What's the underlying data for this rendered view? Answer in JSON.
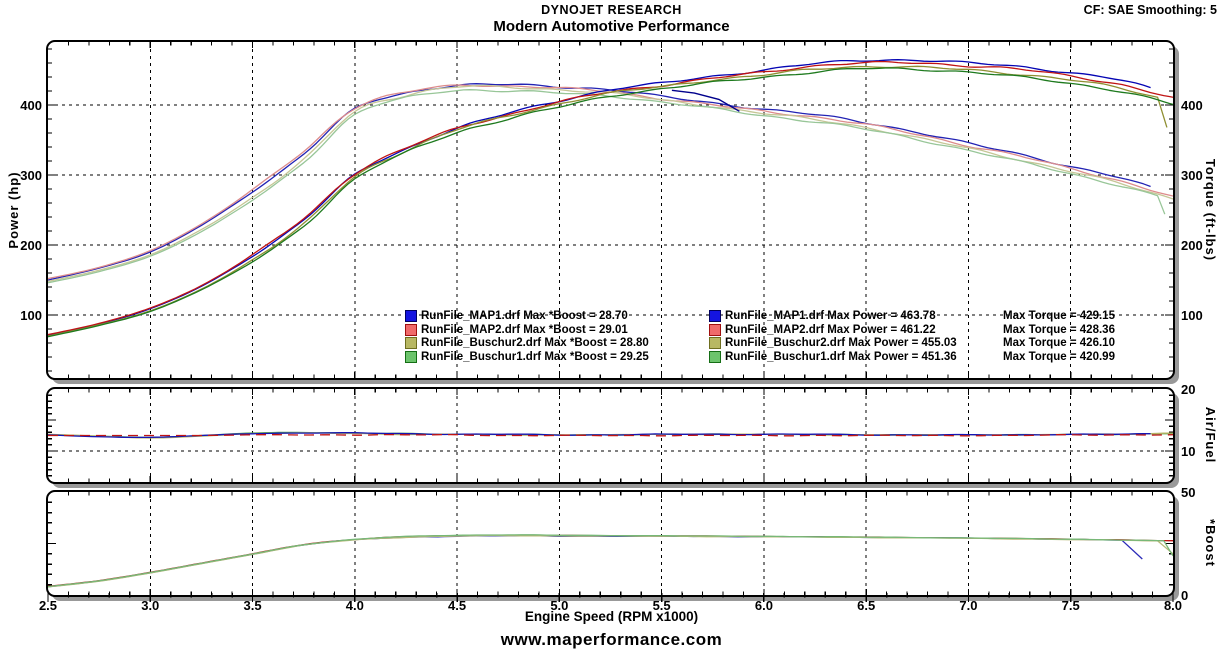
{
  "header": {
    "brand": "DYNOJET RESEARCH",
    "title": "Modern Automotive Performance",
    "correction": "CF: SAE  Smoothing: 5"
  },
  "footer": {
    "website": "www.maperformance.com"
  },
  "axes": {
    "x_label": "Engine Speed (RPM x1000)",
    "x_ticks": [
      "2.5",
      "3.0",
      "3.5",
      "4.0",
      "4.5",
      "5.0",
      "5.5",
      "6.0",
      "6.5",
      "7.0",
      "7.5",
      "8.0"
    ],
    "power_label": "Power (hp)",
    "power_ticks": [
      "100",
      "200",
      "300",
      "400"
    ],
    "torque_label": "Torque (ft-lbs)",
    "torque_ticks": [
      "100",
      "200",
      "300",
      "400"
    ],
    "af_label": "Air/Fuel",
    "af_ticks": [
      "10",
      "20"
    ],
    "boost_label": "*Boost",
    "boost_ticks": [
      "0",
      "50"
    ]
  },
  "runs": [
    {
      "file": "RunFile_MAP1.drf",
      "max_boost": "28.70",
      "max_power": "463.78",
      "max_torque": "429.15",
      "swatch_fill": "#1414e0",
      "swatch_border": "#000060"
    },
    {
      "file": "RunFile_MAP2.drf",
      "max_boost": "29.01",
      "max_power": "461.22",
      "max_torque": "428.36",
      "swatch_fill": "#f06a6a",
      "swatch_border": "#a01010"
    },
    {
      "file": "RunFile_Buschur2.drf",
      "max_boost": "28.80",
      "max_power": "455.03",
      "max_torque": "426.10",
      "swatch_fill": "#b8b863",
      "swatch_border": "#6f6f20"
    },
    {
      "file": "RunFile_Buschur1.drf",
      "max_boost": "29.25",
      "max_power": "451.36",
      "max_torque": "420.99",
      "swatch_fill": "#6cc46c",
      "swatch_border": "#156e15"
    }
  ],
  "legend": {
    "boost_block": [
      "RunFile_MAP1.drf Max *Boost = 28.70",
      "RunFile_MAP2.drf Max *Boost = 29.01",
      "RunFile_Buschur2.drf Max *Boost = 28.80",
      "RunFile_Buschur1.drf Max *Boost = 29.25"
    ],
    "power_block": [
      {
        "power": "RunFile_MAP1.drf Max Power = 463.78",
        "torque": "Max Torque = 429.15"
      },
      {
        "power": "RunFile_MAP2.drf Max Power = 461.22",
        "torque": "Max Torque = 428.36"
      },
      {
        "power": "RunFile_Buschur2.drf Max Power = 455.03",
        "torque": "Max Torque = 426.10"
      },
      {
        "power": "RunFile_Buschur1.drf Max Power = 451.36",
        "torque": "Max Torque = 420.99"
      }
    ]
  },
  "chart_data": [
    {
      "type": "line",
      "title": "Power and Torque vs Engine Speed",
      "xlabel": "Engine Speed (RPM x1000)",
      "x_range": [
        2.5,
        8.0
      ],
      "y_left": {
        "label": "Power (hp)",
        "range": [
          10,
          490
        ],
        "gridlines": [
          100,
          200,
          300,
          400
        ]
      },
      "y_right": {
        "label": "Torque (ft-lbs)",
        "range": [
          10,
          490
        ]
      },
      "x_gridlines": [
        3.0,
        3.5,
        4.0,
        4.5,
        5.0,
        5.5,
        6.0,
        6.5,
        7.0,
        7.5
      ],
      "x": [
        2.5,
        2.75,
        3.0,
        3.25,
        3.5,
        3.75,
        4.0,
        4.25,
        4.5,
        4.75,
        5.0,
        5.25,
        5.5,
        5.75,
        6.0,
        6.25,
        6.5,
        6.75,
        7.0,
        7.25,
        7.5,
        7.75,
        8.0
      ],
      "series": [
        {
          "id": "map1-torque",
          "run": "RunFile_MAP1.drf",
          "metric": "torque",
          "color": "#2323b4",
          "end_rpm": 7.9,
          "values": [
            150,
            167,
            190,
            228,
            276,
            330,
            394,
            417,
            428,
            429,
            426,
            422,
            412,
            403,
            394,
            386,
            375,
            361,
            345,
            330,
            312,
            295,
            272
          ]
        },
        {
          "id": "map2-torque",
          "run": "RunFile_MAP2.drf",
          "metric": "torque",
          "color": "#dd8c8c",
          "end_rpm": 8.0,
          "values": [
            152,
            168,
            192,
            230,
            279,
            334,
            396,
            418,
            428,
            427,
            424,
            419,
            409,
            400,
            391,
            383,
            372,
            358,
            342,
            327,
            309,
            291,
            269
          ]
        },
        {
          "id": "buschur2-torque",
          "run": "RunFile_Buschur2.drf",
          "metric": "torque",
          "color": "#c6c696",
          "end_rpm": 8.0,
          "values": [
            148,
            164,
            186,
            222,
            268,
            322,
            390,
            414,
            426,
            425,
            422,
            417,
            407,
            398,
            388,
            379,
            368,
            353,
            338,
            322,
            305,
            287,
            266
          ]
        },
        {
          "id": "buschur1-torque",
          "run": "RunFile_Buschur1.drf",
          "metric": "torque",
          "color": "#98c698",
          "end_rpm": 7.93,
          "tail": [
            [
              7.96,
              244
            ]
          ],
          "values": [
            146,
            162,
            184,
            219,
            264,
            318,
            386,
            410,
            421,
            420,
            417,
            413,
            404,
            395,
            385,
            376,
            365,
            351,
            335,
            319,
            302,
            284,
            263
          ]
        },
        {
          "id": "map1-power",
          "run": "RunFile_MAP1.drf",
          "metric": "power",
          "color": "#0505b4",
          "end_rpm": 7.9,
          "values": [
            71,
            87,
            109,
            141,
            184,
            236,
            300,
            337,
            367,
            388,
            406,
            422,
            431,
            441,
            450,
            459,
            464,
            464,
            460,
            455,
            446,
            435,
            414
          ]
        },
        {
          "id": "map2-power",
          "run": "RunFile_MAP2.drf",
          "metric": "power",
          "color": "#c01414",
          "end_rpm": 8.0,
          "values": [
            72,
            88,
            110,
            142,
            186,
            238,
            302,
            338,
            367,
            386,
            404,
            419,
            428,
            438,
            447,
            456,
            460,
            460,
            456,
            451,
            441,
            429,
            410
          ]
        },
        {
          "id": "buschur2-power",
          "run": "RunFile_Buschur2.drf",
          "metric": "power",
          "color": "#8f8f32",
          "end_rpm": 7.95,
          "tail": [
            [
              7.97,
              368
            ]
          ],
          "values": [
            70,
            86,
            106,
            137,
            179,
            230,
            297,
            335,
            365,
            384,
            402,
            417,
            426,
            436,
            443,
            451,
            455,
            454,
            450,
            444,
            436,
            423,
            405
          ]
        },
        {
          "id": "buschur1-power",
          "run": "RunFile_Buschur1.drf",
          "metric": "power",
          "color": "#1e7a1e",
          "end_rpm": 8.0,
          "values": [
            69,
            85,
            105,
            136,
            176,
            227,
            294,
            332,
            361,
            380,
            397,
            413,
            423,
            432,
            440,
            447,
            452,
            451,
            447,
            440,
            431,
            419,
            401
          ]
        }
      ],
      "annotations": [
        {
          "id": "partial-run-segment",
          "color": "#00008c",
          "points": [
            [
              5.55,
              421
            ],
            [
              5.66,
              417
            ],
            [
              5.78,
              408
            ],
            [
              5.88,
              391
            ]
          ]
        }
      ]
    },
    {
      "type": "line",
      "title": "Air/Fuel vs Engine Speed",
      "y_right": {
        "label": "Air/Fuel",
        "range": [
          5,
          20
        ],
        "gridlines": [
          10
        ]
      },
      "x_gridlines": [
        3.0,
        3.5,
        4.0,
        4.5,
        5.0,
        5.5,
        6.0,
        6.5,
        7.0,
        7.5
      ],
      "x": [
        2.5,
        2.75,
        3.0,
        3.25,
        3.5,
        3.75,
        4.0,
        4.25,
        4.5,
        4.75,
        5.0,
        5.25,
        5.5,
        5.75,
        6.0,
        6.25,
        6.5,
        6.75,
        7.0,
        7.25,
        7.5,
        7.75,
        8.0
      ],
      "series": [
        {
          "id": "buschur1-af",
          "run": "RunFile_Buschur1.drf",
          "color": "#59a559",
          "end_rpm": 8.0,
          "values": [
            12.6,
            12.4,
            12.2,
            12.5,
            12.9,
            13.0,
            12.9,
            12.8,
            12.7,
            12.7,
            12.6,
            12.6,
            12.7,
            12.7,
            12.7,
            12.7,
            12.6,
            12.6,
            12.6,
            12.6,
            12.7,
            12.7,
            12.8
          ]
        },
        {
          "id": "buschur2-af",
          "run": "RunFile_Buschur2.drf",
          "color": "#b4b464",
          "end_rpm": 8.0,
          "values": [
            12.7,
            12.4,
            12.1,
            12.4,
            12.8,
            12.9,
            12.8,
            12.7,
            12.7,
            12.6,
            12.6,
            12.6,
            12.7,
            12.7,
            12.7,
            12.6,
            12.6,
            12.6,
            12.6,
            12.6,
            12.7,
            12.7,
            12.9
          ]
        },
        {
          "id": "map1-af",
          "run": "RunFile_MAP1.drf",
          "color": "#1515b5",
          "end_rpm": 7.9,
          "values": [
            12.6,
            12.3,
            12.2,
            12.5,
            12.8,
            12.9,
            12.9,
            12.8,
            12.7,
            12.7,
            12.6,
            12.6,
            12.7,
            12.7,
            12.7,
            12.7,
            12.6,
            12.6,
            12.6,
            12.6,
            12.7,
            12.7,
            12.8
          ]
        },
        {
          "id": "map2-af",
          "run": "RunFile_MAP2.drf",
          "color": "#c01414",
          "dash": "10 6",
          "end_rpm": 8.0,
          "values": [
            12.5,
            12.5,
            12.5,
            12.5,
            12.6,
            12.6,
            12.6,
            12.6,
            12.6,
            12.5,
            12.5,
            12.5,
            12.5,
            12.5,
            12.5,
            12.5,
            12.5,
            12.5,
            12.5,
            12.5,
            12.6,
            12.6,
            12.6
          ]
        }
      ]
    },
    {
      "type": "line",
      "title": "*Boost vs Engine Speed",
      "y_right": {
        "label": "*Boost",
        "range": [
          0,
          50
        ],
        "gridlines": []
      },
      "x_gridlines": [
        3.0,
        3.5,
        4.0,
        4.5,
        5.0,
        5.5,
        6.0,
        6.5,
        7.0,
        7.5
      ],
      "x": [
        2.5,
        2.75,
        3.0,
        3.25,
        3.5,
        3.75,
        4.0,
        4.25,
        4.5,
        4.75,
        5.0,
        5.25,
        5.5,
        5.75,
        6.0,
        6.25,
        6.5,
        6.75,
        7.0,
        7.25,
        7.5,
        7.75,
        8.0
      ],
      "series": [
        {
          "id": "map2-boost",
          "run": "RunFile_MAP2.drf",
          "color": "#c01414",
          "end_rpm": 8.0,
          "values": [
            4.2,
            7.0,
            11.0,
            15.5,
            20.0,
            24.5,
            27.0,
            28.3,
            28.8,
            29.0,
            28.9,
            28.8,
            28.7,
            28.6,
            28.4,
            28.3,
            28.1,
            27.9,
            27.7,
            27.4,
            27.1,
            26.8,
            26.3
          ]
        },
        {
          "id": "map1-boost",
          "run": "RunFile_MAP1.drf",
          "color": "#2a2ab8",
          "end_rpm": 7.78,
          "tail": [
            [
              7.85,
              17.5
            ]
          ],
          "values": [
            4.0,
            6.8,
            10.8,
            15.3,
            19.8,
            24.3,
            26.8,
            28.0,
            28.5,
            28.7,
            28.6,
            28.5,
            28.5,
            28.4,
            28.3,
            28.2,
            28.0,
            27.8,
            27.6,
            27.3,
            27.0,
            26.6,
            26.2
          ]
        },
        {
          "id": "buschur2-boost",
          "run": "RunFile_Buschur2.drf",
          "color": "#b9b978",
          "end_rpm": 7.95,
          "tail": [
            [
              8.0,
              20.0
            ]
          ],
          "values": [
            3.9,
            6.7,
            10.7,
            15.2,
            19.7,
            24.2,
            26.7,
            28.0,
            28.6,
            28.8,
            28.7,
            28.6,
            28.5,
            28.4,
            28.3,
            28.1,
            27.9,
            27.7,
            27.5,
            27.2,
            26.9,
            26.6,
            26.1
          ]
        },
        {
          "id": "buschur1-boost",
          "run": "RunFile_Buschur1.drf",
          "color": "#77b877",
          "end_rpm": 7.97,
          "tail": [
            [
              8.0,
              19.0
            ]
          ],
          "values": [
            4.1,
            6.9,
            10.9,
            15.4,
            19.9,
            24.4,
            27.0,
            28.4,
            29.0,
            29.2,
            29.0,
            28.9,
            28.8,
            28.6,
            28.5,
            28.3,
            28.1,
            27.9,
            27.7,
            27.4,
            27.1,
            26.7,
            26.2
          ]
        }
      ]
    }
  ]
}
